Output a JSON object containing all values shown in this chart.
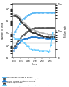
{
  "years": [
    1980,
    1981,
    1982,
    1983,
    1984,
    1985,
    1986,
    1987,
    1988,
    1989,
    1990,
    1991,
    1992,
    1993,
    1994,
    1995,
    1996,
    1997,
    1998,
    1999,
    2000,
    2001,
    2002,
    2003,
    2004,
    2005,
    2006,
    2007,
    2008
  ],
  "total_units": [
    8000,
    13000,
    20000,
    32000,
    52000,
    78000,
    108000,
    143000,
    182000,
    228000,
    275000,
    320000,
    360000,
    390000,
    410000,
    428000,
    440000,
    448000,
    453000,
    458000,
    460000,
    461000,
    462000,
    463000,
    464000,
    465000,
    466000,
    467000,
    468000
  ],
  "units_decommissioned": [
    600,
    900,
    1400,
    2000,
    2800,
    4000,
    5500,
    7500,
    9500,
    12000,
    14000,
    16000,
    18000,
    20000,
    21500,
    22500,
    23000,
    23200,
    23500,
    23800,
    24000,
    23900,
    24100,
    24300,
    24500,
    24600,
    24800,
    24700,
    24500
  ],
  "annual_failures": [
    350,
    550,
    800,
    1200,
    1700,
    2100,
    2600,
    3000,
    3400,
    3700,
    4000,
    4200,
    4300,
    4400,
    4500,
    4400,
    4300,
    4200,
    4100,
    4000,
    3900,
    3800,
    3700,
    3600,
    3500,
    3450,
    3550,
    3650,
    3500
  ],
  "overall_failure_rate": [
    0.044,
    0.042,
    0.04,
    0.037,
    0.033,
    0.027,
    0.024,
    0.021,
    0.0187,
    0.0162,
    0.0145,
    0.0131,
    0.0119,
    0.0113,
    0.011,
    0.0103,
    0.00977,
    0.00937,
    0.00904,
    0.00874,
    0.00847,
    0.00823,
    0.00801,
    0.00778,
    0.00755,
    0.00742,
    0.00761,
    0.00781,
    0.00748
  ],
  "annual_rate_intrinsic": [
    0.038,
    0.037,
    0.035,
    0.032,
    0.028,
    0.023,
    0.02,
    0.0175,
    0.0155,
    0.0135,
    0.0118,
    0.0106,
    0.0097,
    0.009,
    0.0086,
    0.0082,
    0.0077,
    0.0074,
    0.0071,
    0.0068,
    0.0066,
    0.0064,
    0.0062,
    0.006,
    0.0058,
    0.0057,
    0.006,
    0.0062,
    0.0059
  ],
  "annual_failure_rate_with_interventions": [
    0.006,
    0.005,
    0.005,
    0.005,
    0.005,
    0.0042,
    0.004,
    0.0037,
    0.0032,
    0.0027,
    0.0027,
    0.0021,
    0.0021,
    0.0019,
    0.0021,
    0.0019,
    0.0019,
    0.0019,
    0.0018,
    0.0018,
    0.0018,
    0.0018,
    0.0018,
    0.0018,
    0.0017,
    0.0018,
    0.003,
    0.009,
    0.005
  ],
  "colors": {
    "total_units": "#5bb8f5",
    "units_decommissioned": "#555555",
    "annual_failures": "#2277cc",
    "overall_failure_rate": "#aaaaaa",
    "annual_rate_intrinsic": "#333333",
    "annual_failure_rate_with_interventions": "#66ccff"
  },
  "legend_labels": [
    "total number of units in service",
    "number of units decommissioned (out of order)",
    "annual number of intrinsic failures",
    "overall failure rate",
    "annual rate of intrinsic failures",
    "annual failures / failure rate of units with interventions"
  ],
  "ylabel_left": "Number of units",
  "ylabel_right": "Failure rate",
  "xlabel": "Years",
  "xlim": [
    1979,
    2009
  ],
  "xticks": [
    1980,
    1985,
    1990,
    1995,
    2000,
    2005
  ],
  "ylim_left": [
    100,
    2000000
  ],
  "ylim_right": [
    0.001,
    0.1
  ],
  "yticks_left": [
    1000,
    10000,
    100000
  ],
  "yticks_right_labels": [
    "10^-3",
    "10^-2",
    "10^-1"
  ],
  "divider_y": 1500
}
